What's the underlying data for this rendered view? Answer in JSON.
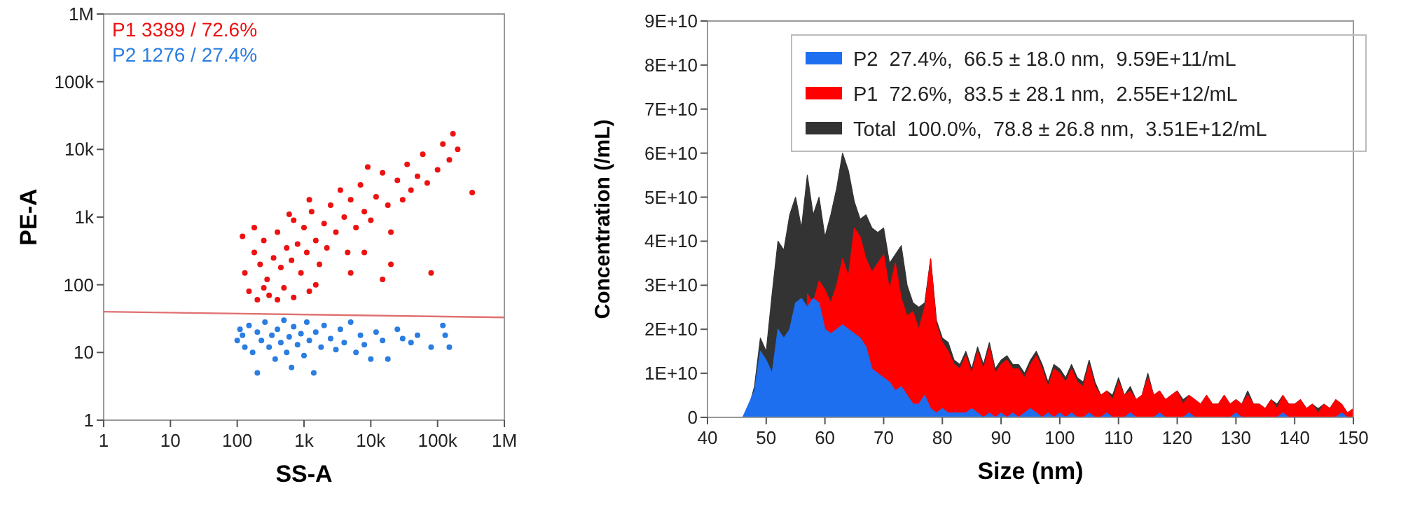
{
  "chart_data": [
    {
      "type": "scatter",
      "xlabel": "SS-A",
      "ylabel": "PE-A",
      "log": "xy",
      "marker": "circle",
      "xlim": [
        1,
        1000000
      ],
      "xticks": [
        1,
        10,
        100,
        {
          "value": 1000,
          "label": "1k"
        },
        {
          "value": 10000,
          "label": "10k"
        },
        {
          "value": 100000,
          "label": "100k"
        },
        {
          "value": 1000000,
          "label": "1M"
        }
      ],
      "ylim": [
        1,
        1000000
      ],
      "yticks": [
        1,
        10,
        100,
        {
          "value": 1000,
          "label": "1k"
        },
        {
          "value": 10000,
          "label": "10k"
        },
        {
          "value": 100000,
          "label": "100k"
        },
        {
          "value": 1000000,
          "label": "1M"
        }
      ],
      "series": [
        {
          "name": "P1  3389 / 72.6%",
          "color": "#ee1111",
          "x": [
            120,
            130,
            150,
            180,
            200,
            220,
            250,
            280,
            300,
            350,
            400,
            450,
            500,
            550,
            600,
            650,
            700,
            800,
            900,
            1000,
            1100,
            1200,
            1300,
            1500,
            1700,
            2000,
            2200,
            2500,
            3000,
            3500,
            4000,
            4500,
            5000,
            6000,
            7000,
            8000,
            9000,
            10000,
            12000,
            15000,
            18000,
            20000,
            25000,
            30000,
            35000,
            40000,
            50000,
            60000,
            70000,
            80000,
            100000,
            120000,
            150000,
            170000,
            200000,
            330000,
            15000,
            8000,
            400,
            1500,
            700,
            250,
            5000,
            20000,
            180,
            1200
          ],
          "values": [
            520,
            150,
            80,
            300,
            60,
            200,
            450,
            120,
            70,
            250,
            600,
            180,
            90,
            350,
            1100,
            230,
            65,
            400,
            150,
            700,
            300,
            80,
            1200,
            450,
            200,
            800,
            350,
            1500,
            600,
            2500,
            1000,
            300,
            1800,
            700,
            3000,
            1200,
            5500,
            900,
            2000,
            4500,
            1500,
            600,
            3500,
            1800,
            6000,
            2500,
            4000,
            8500,
            3200,
            150,
            5000,
            12000,
            7000,
            17000,
            10000,
            2300,
            120,
            300,
            60,
            100,
            900,
            90,
            150,
            200,
            700,
            1800
          ]
        },
        {
          "name": "P2  1276 / 27.4%",
          "color": "#2a7de1",
          "x": [
            100,
            110,
            120,
            130,
            150,
            170,
            200,
            200,
            230,
            260,
            300,
            330,
            370,
            400,
            450,
            500,
            550,
            600,
            650,
            700,
            800,
            900,
            1000,
            1100,
            1200,
            1400,
            1500,
            1800,
            2000,
            2500,
            3000,
            3500,
            4000,
            5000,
            6000,
            7000,
            8000,
            10000,
            12000,
            15000,
            18000,
            25000,
            30000,
            40000,
            50000,
            80000,
            120000,
            130000,
            150000
          ],
          "values": [
            15,
            22,
            18,
            12,
            25,
            10,
            20,
            5,
            15,
            28,
            12,
            18,
            8,
            22,
            14,
            30,
            10,
            17,
            6,
            24,
            13,
            19,
            9,
            28,
            15,
            5,
            20,
            12,
            25,
            16,
            11,
            22,
            14,
            28,
            10,
            18,
            13,
            8,
            20,
            15,
            8,
            22,
            16,
            14,
            18,
            12,
            25,
            18,
            12
          ]
        },
        {
          "type": "line",
          "marker": "none",
          "color": "#e07070",
          "x": [
            1,
            1000000
          ],
          "values": [
            40,
            33
          ]
        }
      ]
    },
    {
      "type": "area",
      "xlabel": "Size (nm)",
      "ylabel": "Concentration (/mL)",
      "legend": "top right",
      "xlim": [
        40,
        150
      ],
      "xticks": [
        40,
        50,
        60,
        70,
        80,
        90,
        100,
        110,
        120,
        130,
        140,
        150
      ],
      "ylim": [
        0,
        90000000000
      ],
      "yticks": [
        0,
        {
          "value": 10000000000,
          "label": "1E+10"
        },
        {
          "value": 20000000000,
          "label": "2E+10"
        },
        {
          "value": 30000000000,
          "label": "3E+10"
        },
        {
          "value": 40000000000,
          "label": "4E+10"
        },
        {
          "value": 50000000000,
          "label": "5E+10"
        },
        {
          "value": 60000000000,
          "label": "6E+10"
        },
        {
          "value": 70000000000,
          "label": "7E+10"
        },
        {
          "value": 80000000000,
          "label": "8E+10"
        },
        {
          "value": 90000000000,
          "label": "9E+10"
        }
      ],
      "x": [
        40,
        41,
        42,
        43,
        44,
        45,
        46,
        47,
        48,
        49,
        50,
        51,
        52,
        53,
        54,
        55,
        56,
        57,
        58,
        59,
        60,
        61,
        62,
        63,
        64,
        65,
        66,
        67,
        68,
        69,
        70,
        71,
        72,
        73,
        74,
        75,
        76,
        77,
        78,
        79,
        80,
        81,
        82,
        83,
        84,
        85,
        86,
        87,
        88,
        89,
        90,
        91,
        92,
        93,
        94,
        95,
        96,
        97,
        98,
        99,
        100,
        101,
        102,
        103,
        104,
        105,
        106,
        107,
        108,
        109,
        110,
        111,
        112,
        113,
        114,
        115,
        116,
        117,
        118,
        119,
        120,
        121,
        122,
        123,
        124,
        125,
        126,
        127,
        128,
        129,
        130,
        131,
        132,
        133,
        134,
        135,
        136,
        137,
        138,
        139,
        140,
        141,
        142,
        143,
        144,
        145,
        146,
        147,
        148,
        149,
        150
      ],
      "series": [
        {
          "name": "P2  27.4%,  66.5 ± 18.0 nm,  9.59E+11/mL",
          "color": "#1e6ff0",
          "values": [
            0,
            0,
            0,
            0,
            0,
            0,
            0,
            3000000000.0,
            6000000000.0,
            15000000000.0,
            13000000000.0,
            10000000000.0,
            20000000000.0,
            18000000000.0,
            20000000000.0,
            26000000000.0,
            27000000000.0,
            25000000000.0,
            27000000000.0,
            26000000000.0,
            20000000000.0,
            19000000000.0,
            20000000000.0,
            21000000000.0,
            20000000000.0,
            19000000000.0,
            18000000000.0,
            16000000000.0,
            11000000000.0,
            10000000000.0,
            9000000000.0,
            8000000000.0,
            6000000000.0,
            7000000000.0,
            5000000000.0,
            3000000000.0,
            3000000000.0,
            5000000000.0,
            2000000000.0,
            1000000000.0,
            2000000000.0,
            1000000000.0,
            1000000000.0,
            1000000000.0,
            1000000000.0,
            2000000000.0,
            1000000000.0,
            0,
            1000000000.0,
            0,
            1000000000.0,
            0,
            1000000000.0,
            0,
            1000000000.0,
            2000000000.0,
            1000000000.0,
            0,
            1000000000.0,
            0,
            1000000000.0,
            0,
            1000000000.0,
            0,
            0,
            1000000000.0,
            0,
            0,
            1000000000.0,
            0,
            0,
            0,
            1000000000.0,
            0,
            0,
            0,
            0,
            1000000000.0,
            0,
            0,
            0,
            0,
            1000000000.0,
            0,
            0,
            0,
            0,
            0,
            0,
            0,
            1000000000.0,
            0,
            0,
            0,
            0,
            0,
            0,
            0,
            1000000000.0,
            0,
            0,
            0,
            0,
            0,
            0,
            0,
            0,
            0,
            1000000000.0,
            0,
            0
          ]
        },
        {
          "name": "P1  72.6%,  83.5 ± 28.1 nm,  2.55E+12/mL",
          "color": "#ff0000",
          "values": [
            null,
            null,
            null,
            null,
            null,
            null,
            null,
            null,
            null,
            null,
            null,
            null,
            null,
            null,
            null,
            null,
            null,
            28000000000.0,
            26000000000.0,
            31000000000.0,
            29000000000.0,
            26000000000.0,
            30000000000.0,
            36000000000.0,
            32000000000.0,
            43000000000.0,
            41000000000.0,
            36000000000.0,
            33000000000.0,
            35000000000.0,
            37000000000.0,
            29000000000.0,
            35000000000.0,
            27000000000.0,
            23000000000.0,
            24000000000.0,
            20000000000.0,
            25000000000.0,
            36000000000.0,
            21000000000.0,
            17000000000.0,
            15000000000.0,
            12000000000.0,
            11000000000.0,
            14000000000.0,
            10000000000.0,
            15000000000.0,
            11000000000.0,
            16000000000.0,
            10000000000.0,
            12000000000.0,
            13000000000.0,
            11000000000.0,
            11000000000.0,
            9000000000.0,
            12000000000.0,
            14000000000.0,
            11000000000.0,
            7000000000.0,
            11000000000.0,
            10000000000.0,
            8000000000.0,
            11000000000.0,
            8000000000.0,
            7000000000.0,
            12000000000.0,
            7000000000.0,
            5000000000.0,
            6000000000.0,
            4000000000.0,
            8000000000.0,
            5000000000.0,
            6000000000.0,
            4000000000.0,
            5000000000.0,
            9000000000.0,
            5000000000.0,
            6000000000.0,
            4000000000.0,
            5000000000.0,
            6000000000.0,
            3000000000.0,
            5000000000.0,
            4000000000.0,
            3000000000.0,
            5000000000.0,
            3000000000.0,
            3000000000.0,
            5000000000.0,
            3000000000.0,
            4000000000.0,
            3000000000.0,
            5000000000.0,
            3000000000.0,
            3000000000.0,
            2000000000.0,
            4000000000.0,
            2000000000.0,
            5000000000.0,
            3000000000.0,
            3000000000.0,
            4000000000.0,
            2000000000.0,
            3000000000.0,
            1000000000.0,
            3000000000.0,
            2000000000.0,
            4000000000.0,
            3000000000.0,
            1000000000.0,
            2000000000.0
          ]
        },
        {
          "name": "Total  100.0%,  78.8 ± 26.8 nm,  3.51E+12/mL",
          "color": "#333333",
          "values": [
            0,
            0,
            0,
            0,
            0,
            0,
            0,
            2000000000.0,
            7000000000.0,
            18000000000.0,
            15000000000.0,
            28000000000.0,
            40000000000.0,
            38000000000.0,
            46000000000.0,
            50000000000.0,
            43000000000.0,
            55000000000.0,
            46000000000.0,
            50000000000.0,
            41000000000.0,
            46000000000.0,
            52000000000.0,
            60000000000.0,
            56000000000.0,
            49000000000.0,
            45000000000.0,
            46000000000.0,
            43000000000.0,
            42000000000.0,
            43000000000.0,
            35000000000.0,
            37000000000.0,
            39000000000.0,
            30000000000.0,
            26000000000.0,
            25000000000.0,
            26000000000.0,
            36000000000.0,
            22000000000.0,
            18000000000.0,
            17000000000.0,
            13000000000.0,
            12000000000.0,
            15000000000.0,
            11000000000.0,
            16000000000.0,
            12000000000.0,
            17000000000.0,
            11000000000.0,
            13000000000.0,
            14000000000.0,
            12000000000.0,
            12000000000.0,
            10000000000.0,
            13000000000.0,
            15000000000.0,
            12000000000.0,
            8000000000.0,
            12000000000.0,
            11000000000.0,
            9000000000.0,
            12000000000.0,
            9000000000.0,
            8000000000.0,
            13000000000.0,
            8000000000.0,
            5000000000.0,
            6000000000.0,
            5000000000.0,
            9000000000.0,
            5000000000.0,
            7000000000.0,
            4000000000.0,
            5000000000.0,
            10000000000.0,
            5000000000.0,
            6000000000.0,
            4000000000.0,
            5000000000.0,
            6000000000.0,
            4000000000.0,
            5000000000.0,
            4000000000.0,
            3000000000.0,
            5000000000.0,
            3000000000.0,
            3000000000.0,
            5000000000.0,
            3000000000.0,
            4000000000.0,
            3000000000.0,
            6000000000.0,
            3000000000.0,
            3000000000.0,
            2000000000.0,
            4000000000.0,
            3000000000.0,
            5000000000.0,
            3000000000.0,
            3000000000.0,
            4000000000.0,
            2000000000.0,
            3000000000.0,
            2000000000.0,
            3000000000.0,
            2000000000.0,
            4000000000.0,
            3000000000.0,
            1000000000.0,
            2000000000.0
          ]
        }
      ]
    }
  ]
}
